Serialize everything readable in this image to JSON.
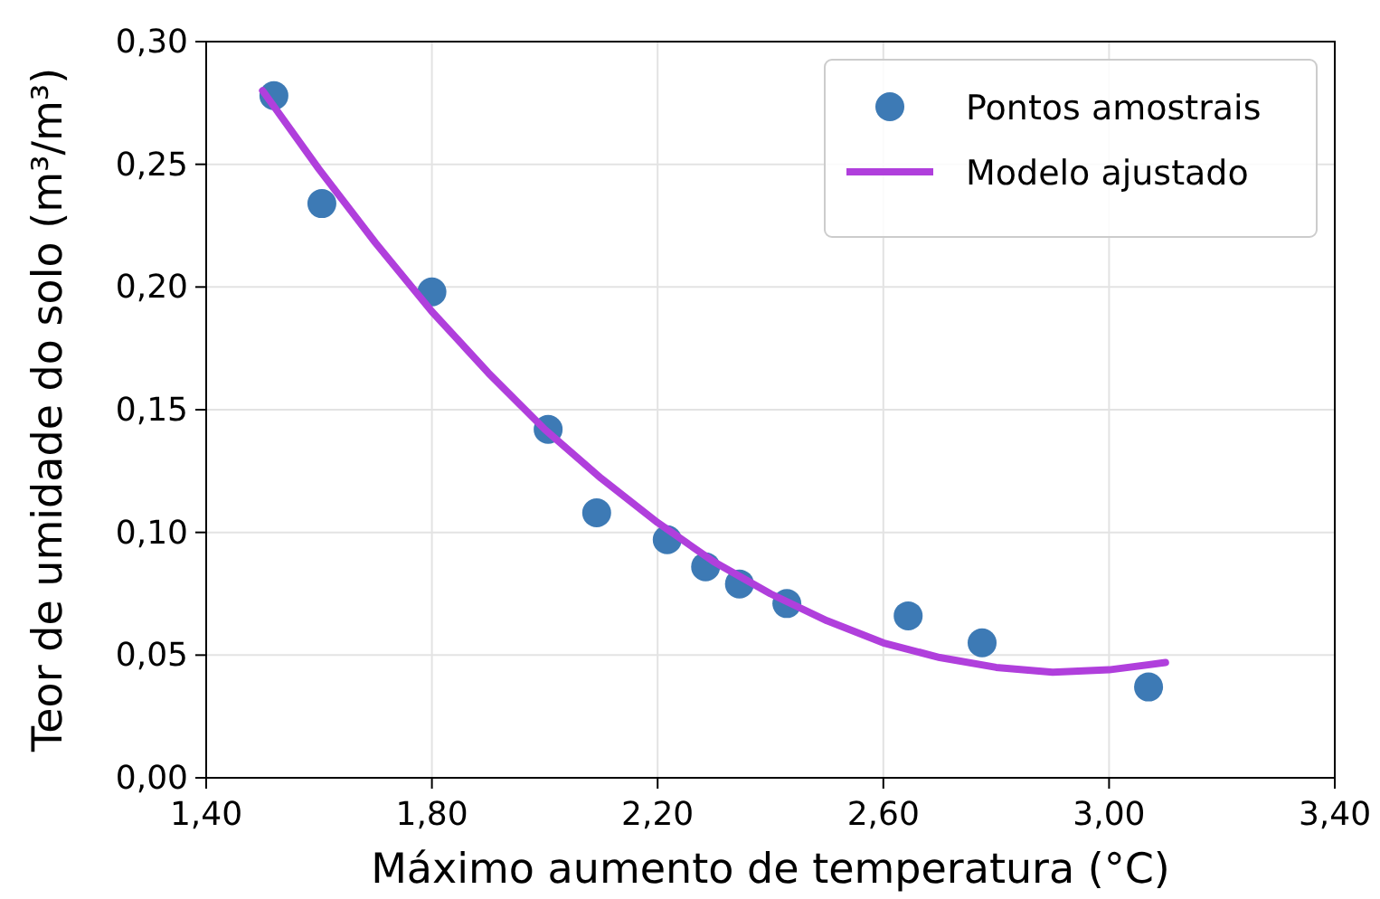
{
  "chart_data": {
    "type": "scatter",
    "xlabel": "Máximo aumento de temperatura (°C)",
    "ylabel": "Teor de umidade do solo (m³/m³)",
    "xlim": [
      1.4,
      3.4
    ],
    "xticks": [
      {
        "value": 1.4,
        "label": "1,40"
      },
      {
        "value": 1.8,
        "label": "1,80"
      },
      {
        "value": 2.2,
        "label": "2,20"
      },
      {
        "value": 2.6,
        "label": "2,60"
      },
      {
        "value": 3.0,
        "label": "3,00"
      },
      {
        "value": 3.4,
        "label": "3,40"
      }
    ],
    "ylim": [
      0,
      0.3
    ],
    "yticks": [
      {
        "value": 0,
        "label": "0,00"
      },
      {
        "value": 0.05,
        "label": "0,05"
      },
      {
        "value": 0.1,
        "label": "0,10"
      },
      {
        "value": 0.15,
        "label": "0,15"
      },
      {
        "value": 0.2,
        "label": "0,20"
      },
      {
        "value": 0.25,
        "label": "0,25"
      },
      {
        "value": 0.3,
        "label": "0,30"
      }
    ],
    "grid": true,
    "legend": "top right",
    "series": [
      {
        "name": "Pontos amostrais",
        "marker": "circle",
        "color": "#3d7ab5",
        "x": [
          1.52,
          1.605,
          1.8,
          2.006,
          2.092,
          2.217,
          2.285,
          2.345,
          2.429,
          2.644,
          2.775,
          3.07
        ],
        "values": [
          0.278,
          0.234,
          0.198,
          0.142,
          0.108,
          0.097,
          0.086,
          0.079,
          0.071,
          0.066,
          0.055,
          0.037
        ]
      },
      {
        "name": "Modelo ajustado",
        "type": "line",
        "line_style": "solid",
        "color": "#b03fdc",
        "x": [
          1.5,
          1.6,
          1.7,
          1.8,
          1.9,
          2.0,
          2.1,
          2.2,
          2.3,
          2.4,
          2.5,
          2.6,
          2.7,
          2.8,
          2.9,
          3.0,
          3.1
        ],
        "values": [
          0.28,
          0.248,
          0.218,
          0.19,
          0.165,
          0.142,
          0.122,
          0.104,
          0.088,
          0.075,
          0.064,
          0.055,
          0.049,
          0.045,
          0.043,
          0.044,
          0.047
        ]
      }
    ]
  }
}
